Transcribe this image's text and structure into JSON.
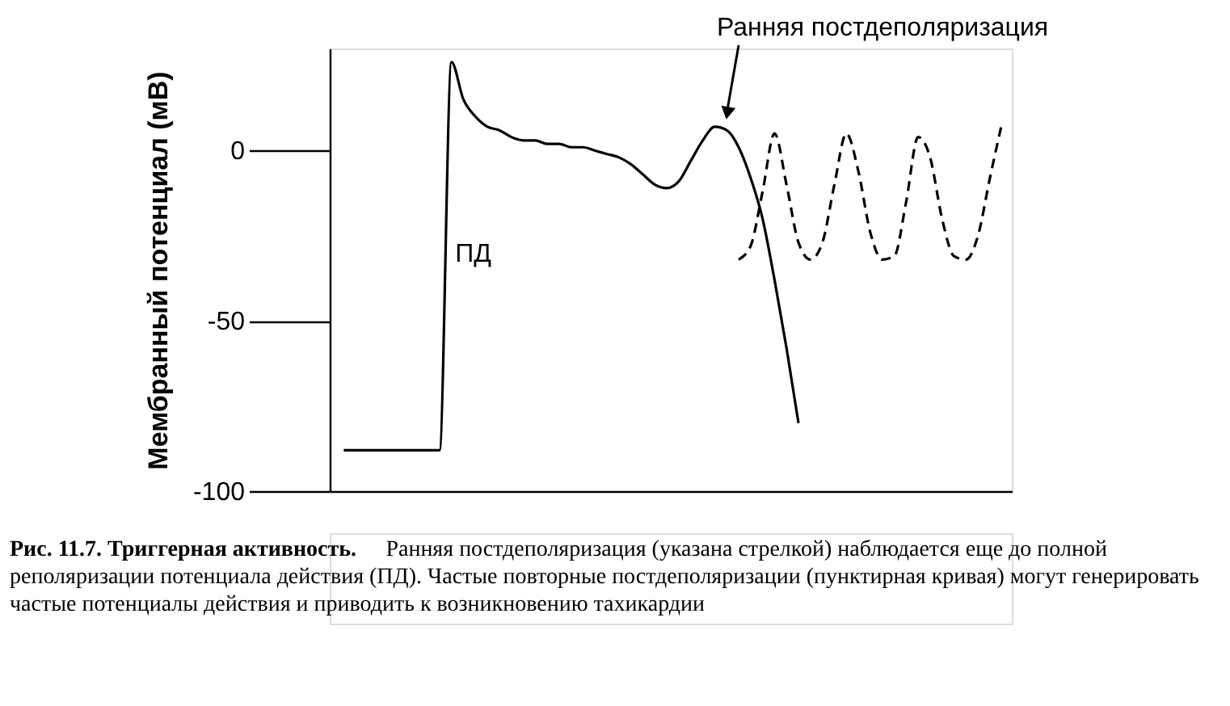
{
  "chart_data": {
    "type": "line",
    "ylabel": "Мембранный потенциал (мВ)",
    "ylim": [
      -100,
      30
    ],
    "yticks": [
      0,
      -50,
      -100
    ],
    "tick_labels": "y",
    "grid": false,
    "marker": "none",
    "categories": [
      null,
      null,
      null,
      null,
      null,
      null,
      null,
      null,
      null,
      null,
      null,
      null,
      null,
      null,
      null,
      null,
      null,
      null,
      null,
      null,
      null,
      null,
      null,
      null,
      null,
      null,
      null,
      null,
      null,
      null,
      null,
      null,
      null,
      null,
      null,
      null,
      null,
      null,
      null,
      null,
      null,
      null,
      null,
      null,
      null,
      null,
      null,
      null,
      null,
      null,
      null,
      null,
      null,
      null,
      null,
      null
    ],
    "series": [
      {
        "color": "#000000",
        "line_style": "solid",
        "values": [
          -88,
          -88,
          -88,
          -88,
          -88,
          -88,
          -88,
          -88,
          -88,
          26,
          15,
          10,
          7,
          6,
          4,
          3,
          3,
          2,
          2,
          1,
          1,
          0,
          -1,
          -2,
          -4,
          -7,
          -10,
          -11,
          -9,
          -3,
          3,
          7,
          6,
          1,
          -8,
          -20,
          -38,
          -58,
          -80,
          null,
          null,
          null,
          null,
          null,
          null,
          null,
          null,
          null,
          null,
          null,
          null,
          null,
          null,
          null,
          null,
          null
        ]
      },
      {
        "color": "#000000",
        "line_style": "dashed",
        "values": [
          null,
          null,
          null,
          null,
          null,
          null,
          null,
          null,
          null,
          null,
          null,
          null,
          null,
          null,
          null,
          null,
          null,
          null,
          null,
          null,
          null,
          null,
          null,
          null,
          null,
          null,
          null,
          null,
          null,
          null,
          null,
          null,
          null,
          -32,
          -28,
          -12,
          5,
          -10,
          -27,
          -32,
          -27,
          -10,
          5,
          -6,
          -24,
          -32,
          -31,
          -15,
          4,
          -2,
          -20,
          -31,
          -32,
          -25,
          -8,
          8
        ]
      }
    ],
    "annotations": [
      "Ранняя постдеполяризация",
      "ПД",
      "Рис. 11.7. Триггерная активность.",
      "Ранняя постдеполяризация (указана стрелкой) наблюдается еще до полной реполяризации потенциала действия (ПД). Частые повторные постдеполяризации (пунктирная кривая) могут генерировать частые потенциалы действия и приводить к возникновению тахикардии"
    ]
  }
}
